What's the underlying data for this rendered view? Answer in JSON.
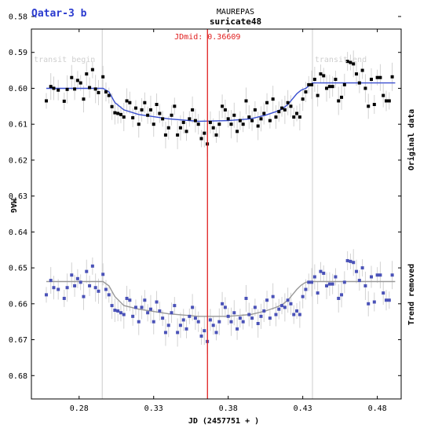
{
  "chart_data": {
    "type": "scatter",
    "title": "Qatar-3 b",
    "observer": "MAUREPAS",
    "camera": "suricate48",
    "xlabel": "JD (2457751 + )",
    "ylabel": "MAG",
    "xlim": [
      0.248,
      0.496
    ],
    "ylim": [
      0.5835,
      0.6865
    ],
    "xticks": [
      "0.28",
      "0.33",
      "0.38",
      "0.43",
      "0.48"
    ],
    "yticks": [
      "0.58",
      "0.59",
      "0.60",
      "0.61",
      "0.62",
      "0.63",
      "0.64",
      "0.65",
      "0.66",
      "0.67",
      "0.68"
    ],
    "jdmid": {
      "label": "JDmid: 0.36609",
      "x": 0.36609,
      "color": "#e02020"
    },
    "transit_begin": {
      "label": "transit begin",
      "x": 0.2955
    },
    "transit_end": {
      "label": "transit end",
      "x": 0.4365
    },
    "colors": {
      "original_points": "#000000",
      "original_model": "#3a4fd0",
      "detrended_points": "#4a52b8",
      "detrended_model": "#999999",
      "errorbar": "#d2d2d2",
      "title": "#2a3acf",
      "trend_label": "#5060c8"
    },
    "side_labels": {
      "original": "Original data",
      "trend": "Trend removed"
    },
    "series": [
      {
        "name": "Original data",
        "x": [
          0.258,
          0.261,
          0.263,
          0.266,
          0.27,
          0.272,
          0.275,
          0.277,
          0.279,
          0.281,
          0.283,
          0.285,
          0.287,
          0.289,
          0.291,
          0.293,
          0.296,
          0.298,
          0.3,
          0.302,
          0.304,
          0.306,
          0.308,
          0.31,
          0.312,
          0.314,
          0.316,
          0.318,
          0.32,
          0.322,
          0.324,
          0.326,
          0.328,
          0.33,
          0.332,
          0.334,
          0.336,
          0.338,
          0.34,
          0.342,
          0.344,
          0.346,
          0.348,
          0.35,
          0.352,
          0.354,
          0.356,
          0.358,
          0.36,
          0.362,
          0.364,
          0.366,
          0.368,
          0.37,
          0.372,
          0.374,
          0.376,
          0.378,
          0.38,
          0.382,
          0.384,
          0.386,
          0.388,
          0.39,
          0.392,
          0.394,
          0.396,
          0.398,
          0.4,
          0.402,
          0.404,
          0.406,
          0.408,
          0.41,
          0.412,
          0.414,
          0.416,
          0.418,
          0.42,
          0.422,
          0.424,
          0.426,
          0.428,
          0.43,
          0.432,
          0.434,
          0.436,
          0.438,
          0.44,
          0.442,
          0.444,
          0.446,
          0.448,
          0.45,
          0.452,
          0.454,
          0.456,
          0.458,
          0.46,
          0.462,
          0.464,
          0.466,
          0.468,
          0.47,
          0.472,
          0.474,
          0.476,
          0.478,
          0.48,
          0.482,
          0.484,
          0.486,
          0.488,
          0.49
        ],
        "y": [
          0.6035,
          0.5995,
          0.6,
          0.6005,
          0.6036,
          0.6003,
          0.597,
          0.6002,
          0.5978,
          0.5985,
          0.603,
          0.596,
          0.5998,
          0.5948,
          0.6002,
          0.6012,
          0.5968,
          0.601,
          0.602,
          0.6051,
          0.6068,
          0.607,
          0.6073,
          0.608,
          0.6035,
          0.604,
          0.6082,
          0.6055,
          0.61,
          0.606,
          0.604,
          0.6075,
          0.606,
          0.61,
          0.6045,
          0.607,
          0.6085,
          0.613,
          0.611,
          0.6075,
          0.605,
          0.613,
          0.611,
          0.6095,
          0.612,
          0.6085,
          0.606,
          0.609,
          0.61,
          0.614,
          0.6125,
          0.6155,
          0.6095,
          0.611,
          0.613,
          0.61,
          0.605,
          0.606,
          0.6085,
          0.61,
          0.6075,
          0.612,
          0.609,
          0.61,
          0.6035,
          0.608,
          0.609,
          0.606,
          0.6105,
          0.6085,
          0.607,
          0.604,
          0.609,
          0.603,
          0.608,
          0.6065,
          0.6055,
          0.606,
          0.604,
          0.605,
          0.608,
          0.607,
          0.608,
          0.603,
          0.601,
          0.599,
          0.599,
          0.5975,
          0.602,
          0.596,
          0.5965,
          0.6,
          0.5995,
          0.5995,
          0.5975,
          0.6035,
          0.6025,
          0.599,
          0.5925,
          0.5928,
          0.5932,
          0.596,
          0.5985,
          0.595,
          0.6,
          0.605,
          0.5975,
          0.6045,
          0.597,
          0.597,
          0.602,
          0.6035,
          0.6035,
          0.5968
        ]
      },
      {
        "name": "Trend removed",
        "x": [
          0.258,
          0.261,
          0.263,
          0.266,
          0.27,
          0.272,
          0.275,
          0.277,
          0.279,
          0.281,
          0.283,
          0.285,
          0.287,
          0.289,
          0.291,
          0.293,
          0.296,
          0.298,
          0.3,
          0.302,
          0.304,
          0.306,
          0.308,
          0.31,
          0.312,
          0.314,
          0.316,
          0.318,
          0.32,
          0.322,
          0.324,
          0.326,
          0.328,
          0.33,
          0.332,
          0.334,
          0.336,
          0.338,
          0.34,
          0.342,
          0.344,
          0.346,
          0.348,
          0.35,
          0.352,
          0.354,
          0.356,
          0.358,
          0.36,
          0.362,
          0.364,
          0.366,
          0.368,
          0.37,
          0.372,
          0.374,
          0.376,
          0.378,
          0.38,
          0.382,
          0.384,
          0.386,
          0.388,
          0.39,
          0.392,
          0.394,
          0.396,
          0.398,
          0.4,
          0.402,
          0.404,
          0.406,
          0.408,
          0.41,
          0.412,
          0.414,
          0.416,
          0.418,
          0.42,
          0.422,
          0.424,
          0.426,
          0.428,
          0.43,
          0.432,
          0.434,
          0.436,
          0.438,
          0.44,
          0.442,
          0.444,
          0.446,
          0.448,
          0.45,
          0.452,
          0.454,
          0.456,
          0.458,
          0.46,
          0.462,
          0.464,
          0.466,
          0.468,
          0.47,
          0.472,
          0.474,
          0.476,
          0.478,
          0.48,
          0.482,
          0.484,
          0.486,
          0.488,
          0.49
        ],
        "y": [
          0.6575,
          0.6535,
          0.6555,
          0.656,
          0.6585,
          0.6555,
          0.652,
          0.655,
          0.653,
          0.654,
          0.658,
          0.651,
          0.655,
          0.6495,
          0.6555,
          0.6565,
          0.6518,
          0.656,
          0.6575,
          0.6605,
          0.6618,
          0.662,
          0.6625,
          0.663,
          0.6585,
          0.659,
          0.6635,
          0.661,
          0.665,
          0.661,
          0.659,
          0.6625,
          0.6615,
          0.665,
          0.6595,
          0.662,
          0.664,
          0.668,
          0.666,
          0.6625,
          0.6605,
          0.668,
          0.666,
          0.6645,
          0.667,
          0.6635,
          0.661,
          0.664,
          0.665,
          0.669,
          0.6675,
          0.6705,
          0.6645,
          0.666,
          0.668,
          0.665,
          0.66,
          0.661,
          0.6635,
          0.665,
          0.6625,
          0.667,
          0.664,
          0.665,
          0.6585,
          0.663,
          0.664,
          0.661,
          0.6655,
          0.6635,
          0.662,
          0.659,
          0.664,
          0.658,
          0.663,
          0.6615,
          0.6605,
          0.661,
          0.659,
          0.66,
          0.663,
          0.662,
          0.663,
          0.658,
          0.656,
          0.654,
          0.654,
          0.6525,
          0.657,
          0.651,
          0.6515,
          0.655,
          0.6545,
          0.6545,
          0.6525,
          0.6585,
          0.6575,
          0.654,
          0.648,
          0.6482,
          0.6485,
          0.651,
          0.6535,
          0.65,
          0.655,
          0.66,
          0.6525,
          0.6595,
          0.652,
          0.652,
          0.657,
          0.659,
          0.659,
          0.652
        ]
      }
    ],
    "models": [
      {
        "name": "model-original",
        "x": [
          0.258,
          0.296,
          0.3,
          0.304,
          0.31,
          0.32,
          0.34,
          0.36,
          0.38,
          0.395,
          0.405,
          0.412,
          0.416,
          0.42,
          0.423,
          0.426,
          0.429,
          0.432,
          0.4365,
          0.492
        ],
        "y": [
          0.6,
          0.6,
          0.601,
          0.604,
          0.606,
          0.6073,
          0.6085,
          0.6092,
          0.609,
          0.6085,
          0.6075,
          0.6065,
          0.6058,
          0.6045,
          0.603,
          0.6015,
          0.6005,
          0.6,
          0.5985,
          0.5985
        ]
      },
      {
        "name": "model-detrended",
        "x": [
          0.258,
          0.296,
          0.3,
          0.304,
          0.31,
          0.32,
          0.34,
          0.36,
          0.38,
          0.395,
          0.405,
          0.412,
          0.416,
          0.42,
          0.423,
          0.426,
          0.429,
          0.432,
          0.4365,
          0.492
        ],
        "y": [
          0.6538,
          0.6538,
          0.655,
          0.658,
          0.6605,
          0.6615,
          0.6628,
          0.6635,
          0.6635,
          0.663,
          0.662,
          0.661,
          0.6603,
          0.659,
          0.6575,
          0.656,
          0.6548,
          0.654,
          0.6538,
          0.6538
        ]
      }
    ]
  }
}
